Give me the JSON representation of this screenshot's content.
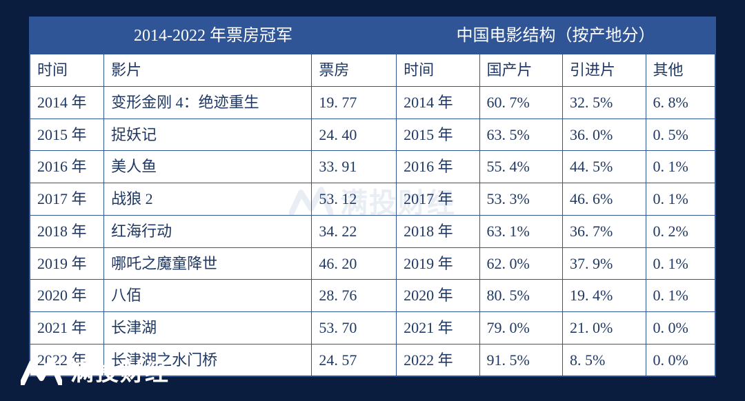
{
  "colors": {
    "page_bg": "#0a1d3f",
    "table_bg": "#ffffff",
    "border": "#2f5597",
    "header_bg": "#2f5597",
    "header_text": "#ffffff",
    "cell_text": "#1f3864",
    "watermark": "#2f5597"
  },
  "typography": {
    "body_family": "SimSun",
    "cell_fontsize_pt": 16,
    "header_fontsize_pt": 18,
    "brand_family": "Microsoft YaHei",
    "brand_fontsize_pt": 26
  },
  "table": {
    "type": "table",
    "group_headers": {
      "left": "2014-2022 年票房冠军",
      "right": "中国电影结构（按产地分）"
    },
    "columns_left": [
      "时间",
      "影片",
      "票房"
    ],
    "columns_right": [
      "时间",
      "国产片",
      "引进片",
      "其他"
    ],
    "rows": [
      {
        "year_l": "2014 年",
        "film": "变形金刚 4：绝迹重生",
        "box": "19. 77",
        "year_r": "2014 年",
        "dom": "60. 7%",
        "imp": "32. 5%",
        "oth": "6. 8%"
      },
      {
        "year_l": "2015 年",
        "film": "捉妖记",
        "box": "24. 40",
        "year_r": "2015 年",
        "dom": "63. 5%",
        "imp": "36. 0%",
        "oth": "0. 5%"
      },
      {
        "year_l": "2016 年",
        "film": "美人鱼",
        "box": "33. 91",
        "year_r": "2016 年",
        "dom": "55. 4%",
        "imp": "44. 5%",
        "oth": "0. 1%"
      },
      {
        "year_l": "2017 年",
        "film": "战狼 2",
        "box": "53. 12",
        "year_r": "2017 年",
        "dom": "53. 3%",
        "imp": "46. 6%",
        "oth": "0. 1%"
      },
      {
        "year_l": "2018 年",
        "film": "红海行动",
        "box": "34. 22",
        "year_r": "2018 年",
        "dom": "63. 1%",
        "imp": "36. 7%",
        "oth": "0. 2%"
      },
      {
        "year_l": "2019 年",
        "film": "哪吒之魔童降世",
        "box": "46. 20",
        "year_r": "2019 年",
        "dom": "62. 0%",
        "imp": "37. 9%",
        "oth": "0. 1%"
      },
      {
        "year_l": "2020 年",
        "film": "八佰",
        "box": "28. 76",
        "year_r": "2020 年",
        "dom": "80. 5%",
        "imp": "19. 4%",
        "oth": "0. 1%"
      },
      {
        "year_l": "2021 年",
        "film": "长津湖",
        "box": "53. 70",
        "year_r": "2021 年",
        "dom": "79. 0%",
        "imp": "21. 0%",
        "oth": "0. 0%"
      },
      {
        "year_l": "2022 年",
        "film": "长津湖之水门桥",
        "box": "24. 57",
        "year_r": "2022 年",
        "dom": "91. 5%",
        "imp": "8. 5%",
        "oth": "0. 0%"
      }
    ]
  },
  "brand": {
    "name": "满投财经",
    "watermark_text": "满投财经"
  }
}
